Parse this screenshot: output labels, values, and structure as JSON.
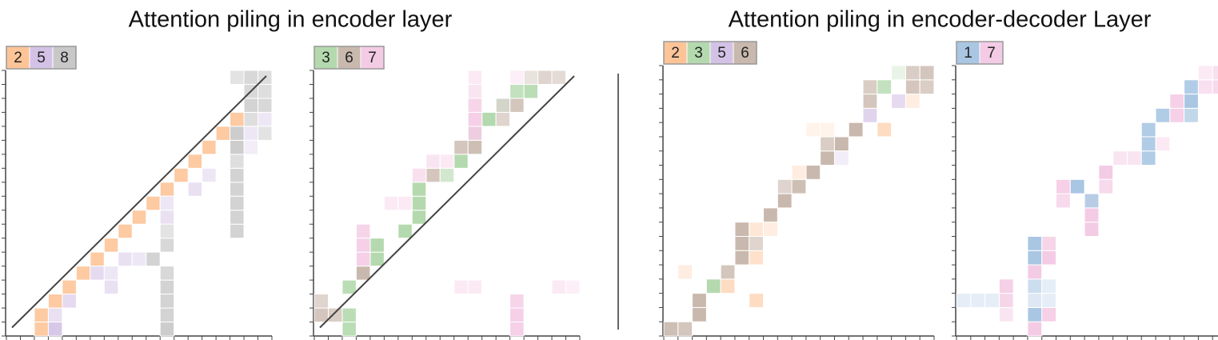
{
  "titles": [
    "Attention piling in encoder layer",
    "Attention piling in encoder-decoder Layer"
  ],
  "chart_data": [
    {
      "type": "heatmap",
      "grid": 19,
      "diagonal": true,
      "legend": [
        {
          "label": "2",
          "color": "#fdc498"
        },
        {
          "label": "5",
          "color": "#d3c2e6"
        },
        {
          "label": "8",
          "color": "#c8c8c8"
        }
      ],
      "cells": [
        [
          2,
          0,
          0,
          0.9
        ],
        [
          2,
          1,
          0,
          0.9
        ],
        [
          3,
          2,
          0,
          0.9
        ],
        [
          4,
          3,
          0,
          0.9
        ],
        [
          5,
          4,
          0,
          0.9
        ],
        [
          6,
          5,
          0,
          0.9
        ],
        [
          7,
          6,
          0,
          0.9
        ],
        [
          8,
          7,
          0,
          0.9
        ],
        [
          9,
          8,
          0,
          0.9
        ],
        [
          10,
          9,
          0,
          0.9
        ],
        [
          11,
          10,
          0,
          0.9
        ],
        [
          12,
          11,
          0,
          0.9
        ],
        [
          13,
          12,
          0,
          0.9
        ],
        [
          14,
          13,
          0,
          0.9
        ],
        [
          15,
          14,
          0,
          0.9
        ],
        [
          16,
          15,
          0,
          0.9
        ],
        [
          3,
          0,
          1,
          0.9
        ],
        [
          3,
          1,
          1,
          0.5
        ],
        [
          4,
          2,
          1,
          0.6
        ],
        [
          6,
          4,
          1,
          0.6
        ],
        [
          7,
          4,
          1,
          0.4
        ],
        [
          8,
          5,
          1,
          0.5
        ],
        [
          11,
          8,
          1,
          0.5
        ],
        [
          11,
          9,
          1,
          0.4
        ],
        [
          13,
          10,
          1,
          0.5
        ],
        [
          14,
          11,
          1,
          0.4
        ],
        [
          17,
          14,
          1,
          0.4
        ],
        [
          18,
          15,
          1,
          0.4
        ],
        [
          17,
          13,
          1,
          0.3
        ],
        [
          7,
          3,
          1,
          0.5
        ],
        [
          9,
          5,
          1,
          0.4
        ],
        [
          11,
          0,
          2,
          0.9
        ],
        [
          11,
          1,
          2,
          0.8
        ],
        [
          11,
          2,
          2,
          0.8
        ],
        [
          11,
          3,
          2,
          0.8
        ],
        [
          11,
          4,
          2,
          0.7
        ],
        [
          10,
          5,
          2,
          0.8
        ],
        [
          11,
          6,
          2,
          0.7
        ],
        [
          11,
          7,
          2,
          0.5
        ],
        [
          16,
          7,
          2,
          0.8
        ],
        [
          16,
          8,
          2,
          0.8
        ],
        [
          16,
          9,
          2,
          0.8
        ],
        [
          16,
          10,
          2,
          0.8
        ],
        [
          16,
          11,
          2,
          0.8
        ],
        [
          16,
          12,
          2,
          0.6
        ],
        [
          16,
          13,
          2,
          0.9
        ],
        [
          16,
          14,
          2,
          0.9
        ],
        [
          17,
          15,
          2,
          0.6
        ],
        [
          17,
          16,
          2,
          0.8
        ],
        [
          18,
          16,
          2,
          0.7
        ],
        [
          17,
          17,
          2,
          0.7
        ],
        [
          18,
          17,
          2,
          0.6
        ],
        [
          16,
          18,
          2,
          0.5
        ],
        [
          17,
          18,
          2,
          0.7
        ],
        [
          18,
          18,
          2,
          0.6
        ],
        [
          18,
          14,
          2,
          0.5
        ]
      ]
    },
    {
      "type": "heatmap",
      "grid": 19,
      "diagonal": true,
      "legend": [
        {
          "label": "3",
          "color": "#b4d9ae"
        },
        {
          "label": "6",
          "color": "#c9b8ad"
        },
        {
          "label": "7",
          "color": "#f4cbe4"
        }
      ],
      "cells": [
        [
          0,
          1,
          1,
          0.8
        ],
        [
          1,
          1,
          1,
          0.7
        ],
        [
          0,
          2,
          1,
          0.6
        ],
        [
          2,
          0,
          0,
          0.9
        ],
        [
          2,
          1,
          0,
          0.9
        ],
        [
          2,
          3,
          0,
          0.9
        ],
        [
          3,
          4,
          1,
          1
        ],
        [
          4,
          5,
          0,
          1
        ],
        [
          4,
          6,
          0,
          1
        ],
        [
          6,
          7,
          0,
          1
        ],
        [
          7,
          8,
          0,
          1
        ],
        [
          7,
          9,
          0,
          1
        ],
        [
          7,
          10,
          0,
          1
        ],
        [
          8,
          11,
          1,
          0.8
        ],
        [
          9,
          11,
          0,
          0.6
        ],
        [
          10,
          12,
          0,
          1
        ],
        [
          10,
          13,
          1,
          0.8
        ],
        [
          11,
          13,
          1,
          0.9
        ],
        [
          11,
          14,
          0,
          0.9
        ],
        [
          12,
          15,
          0,
          1
        ],
        [
          13,
          15,
          1,
          0.6
        ],
        [
          13,
          16,
          0,
          0.9
        ],
        [
          14,
          16,
          1,
          0.8
        ],
        [
          14,
          17,
          0,
          0.8
        ],
        [
          15,
          17,
          0,
          0.9
        ],
        [
          16,
          18,
          1,
          0.6
        ],
        [
          17,
          18,
          1,
          0.5
        ],
        [
          15,
          18,
          1,
          0.4
        ],
        [
          3,
          5,
          2,
          0.9
        ],
        [
          3,
          6,
          2,
          0.9
        ],
        [
          3,
          7,
          2,
          0.8
        ],
        [
          11,
          14,
          2,
          0.9
        ],
        [
          11,
          15,
          2,
          0.9
        ],
        [
          11,
          16,
          2,
          0.8
        ],
        [
          11,
          17,
          2,
          0.5
        ],
        [
          11,
          18,
          2,
          0.4
        ],
        [
          14,
          0,
          2,
          0.9
        ],
        [
          14,
          1,
          2,
          0.9
        ],
        [
          14,
          2,
          2,
          0.8
        ],
        [
          7,
          11,
          2,
          0.6
        ],
        [
          8,
          12,
          2,
          0.5
        ],
        [
          9,
          12,
          2,
          0.4
        ],
        [
          5,
          9,
          2,
          0.4
        ],
        [
          6,
          9,
          2,
          0.4
        ],
        [
          10,
          3,
          2,
          0.4
        ],
        [
          11,
          3,
          2,
          0.4
        ],
        [
          17,
          3,
          2,
          0.4
        ],
        [
          18,
          3,
          2,
          0.3
        ],
        [
          13,
          16,
          2,
          0.4
        ],
        [
          14,
          18,
          2,
          0.3
        ]
      ]
    },
    {
      "type": "heatmap",
      "grid": 19,
      "diagonal": false,
      "legend": [
        {
          "label": "2",
          "color": "#fdc498"
        },
        {
          "label": "3",
          "color": "#b4d9ae"
        },
        {
          "label": "5",
          "color": "#d3c2e6"
        },
        {
          "label": "6",
          "color": "#c9b8ad"
        }
      ],
      "cells": [
        [
          0,
          0,
          3,
          0.9
        ],
        [
          1,
          0,
          3,
          0.8
        ],
        [
          2,
          1,
          3,
          1
        ],
        [
          2,
          2,
          3,
          1
        ],
        [
          3,
          3,
          1,
          1
        ],
        [
          4,
          3,
          0,
          0.6
        ],
        [
          4,
          4,
          3,
          0.8
        ],
        [
          5,
          5,
          3,
          1
        ],
        [
          5,
          6,
          3,
          1
        ],
        [
          5,
          7,
          3,
          1
        ],
        [
          6,
          5,
          0,
          0.5
        ],
        [
          6,
          6,
          3,
          0.6
        ],
        [
          6,
          7,
          0,
          0.4
        ],
        [
          7,
          8,
          3,
          1
        ],
        [
          7,
          7,
          0,
          0.3
        ],
        [
          8,
          9,
          3,
          1
        ],
        [
          8,
          10,
          3,
          0.6
        ],
        [
          9,
          10,
          3,
          0.9
        ],
        [
          10,
          11,
          3,
          1
        ],
        [
          9,
          11,
          0,
          0.3
        ],
        [
          11,
          12,
          3,
          1
        ],
        [
          11,
          13,
          3,
          0.7
        ],
        [
          12,
          13,
          3,
          1
        ],
        [
          12,
          12,
          2,
          0.3
        ],
        [
          13,
          14,
          3,
          1
        ],
        [
          15,
          14,
          0,
          0.6
        ],
        [
          14,
          15,
          2,
          0.7
        ],
        [
          14,
          16,
          3,
          0.8
        ],
        [
          14,
          17,
          3,
          0.7
        ],
        [
          15,
          17,
          1,
          0.8
        ],
        [
          16,
          16,
          2,
          0.6
        ],
        [
          17,
          16,
          0,
          0.3
        ],
        [
          17,
          17,
          3,
          0.8
        ],
        [
          18,
          17,
          3,
          0.7
        ],
        [
          17,
          18,
          3,
          0.7
        ],
        [
          18,
          18,
          3,
          0.8
        ],
        [
          16,
          18,
          1,
          0.3
        ],
        [
          10,
          14,
          0,
          0.2
        ],
        [
          11,
          14,
          0,
          0.2
        ],
        [
          1,
          4,
          0,
          0.3
        ],
        [
          6,
          2,
          0,
          0.6
        ]
      ]
    },
    {
      "type": "heatmap",
      "grid": 19,
      "diagonal": false,
      "legend": [
        {
          "label": "1",
          "color": "#a9c6e3"
        },
        {
          "label": "7",
          "color": "#f4cbe4"
        }
      ],
      "cells": [
        [
          5,
          0,
          1,
          1
        ],
        [
          5,
          1,
          0,
          1
        ],
        [
          5,
          2,
          0,
          0.4
        ],
        [
          5,
          3,
          0,
          0.6
        ],
        [
          5,
          4,
          1,
          1
        ],
        [
          5,
          5,
          0,
          1
        ],
        [
          5,
          6,
          0,
          1
        ],
        [
          6,
          5,
          1,
          1
        ],
        [
          6,
          6,
          1,
          0.8
        ],
        [
          6,
          1,
          1,
          0.9
        ],
        [
          3,
          1,
          1,
          0.5
        ],
        [
          3,
          2,
          1,
          0.8
        ],
        [
          3,
          3,
          1,
          0.9
        ],
        [
          6,
          2,
          0,
          0.3
        ],
        [
          6,
          3,
          0,
          0.3
        ],
        [
          7,
          9,
          1,
          0.7
        ],
        [
          7,
          10,
          1,
          0.9
        ],
        [
          8,
          10,
          0,
          1
        ],
        [
          9,
          9,
          1,
          0.5
        ],
        [
          9,
          7,
          1,
          1
        ],
        [
          9,
          8,
          1,
          1
        ],
        [
          9,
          9,
          0,
          0.8
        ],
        [
          10,
          11,
          1,
          1
        ],
        [
          10,
          10,
          1,
          0.7
        ],
        [
          12,
          12,
          1,
          0.5
        ],
        [
          13,
          12,
          0,
          0.9
        ],
        [
          13,
          13,
          0,
          0.9
        ],
        [
          13,
          14,
          0,
          0.9
        ],
        [
          14,
          15,
          0,
          0.9
        ],
        [
          15,
          15,
          1,
          0.9
        ],
        [
          15,
          16,
          1,
          0.9
        ],
        [
          16,
          15,
          0,
          0.7
        ],
        [
          16,
          16,
          0,
          1
        ],
        [
          16,
          17,
          0,
          0.9
        ],
        [
          17,
          17,
          1,
          0.6
        ],
        [
          18,
          17,
          1,
          0.7
        ],
        [
          17,
          18,
          1,
          0.4
        ],
        [
          18,
          18,
          1,
          0.6
        ],
        [
          0,
          2,
          0,
          0.3
        ],
        [
          1,
          2,
          0,
          0.3
        ],
        [
          2,
          2,
          0,
          0.3
        ],
        [
          11,
          12,
          1,
          0.5
        ],
        [
          14,
          13,
          1,
          0.4
        ]
      ]
    }
  ]
}
